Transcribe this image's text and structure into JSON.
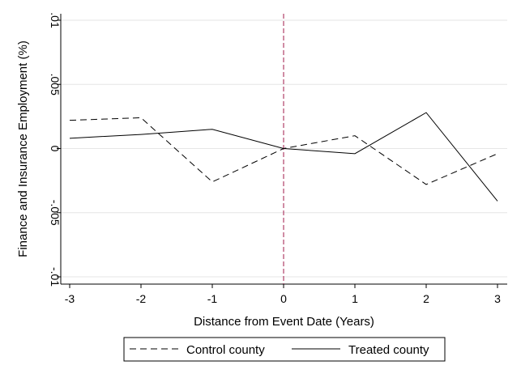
{
  "chart_data": {
    "type": "line",
    "title": "",
    "xlabel": "Distance from Event Date (Years)",
    "ylabel": "Finance and Insurance Employment (%)",
    "x": [
      -3,
      -2,
      -1,
      0,
      1,
      2,
      3
    ],
    "xlim": [
      -3,
      3
    ],
    "ylim": [
      -0.01,
      0.01
    ],
    "xticks": [
      -3,
      -2,
      -1,
      0,
      1,
      2,
      3
    ],
    "xtick_labels": [
      "-3",
      "-2",
      "-1",
      "0",
      "1",
      "2",
      "3"
    ],
    "yticks": [
      0.01,
      0.005,
      0,
      -0.005,
      -0.01
    ],
    "ytick_labels": [
      ".01",
      ".005",
      "0",
      "-.005",
      "-.01"
    ],
    "grid": true,
    "legend_position": "bottom",
    "event_line_x": 0,
    "series": [
      {
        "name": "Control county",
        "style": "dashed",
        "color": "#000000",
        "values": [
          0.0022,
          0.0024,
          -0.0026,
          0.0,
          0.001,
          -0.0028,
          -0.0004
        ]
      },
      {
        "name": "Treated county",
        "style": "solid",
        "color": "#000000",
        "values": [
          0.0008,
          0.0011,
          0.0015,
          0.0,
          -0.0004,
          0.0028,
          -0.0041
        ]
      }
    ],
    "event_line_color": "#a0184a"
  }
}
